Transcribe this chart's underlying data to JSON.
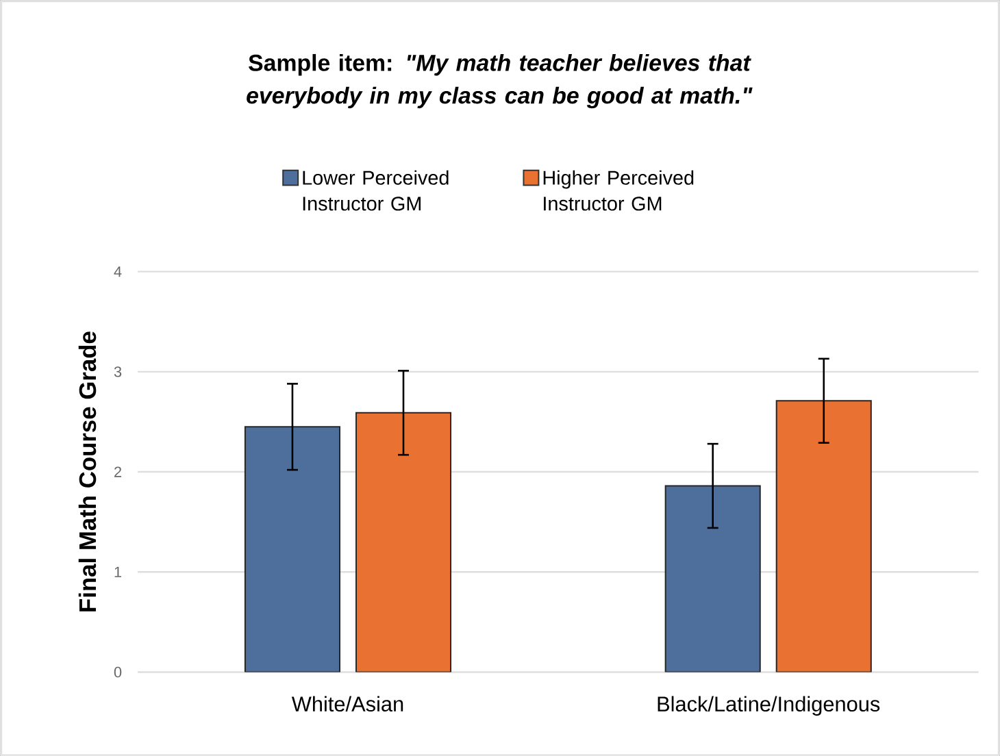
{
  "chart_data": {
    "type": "bar",
    "title": "Sample item: *\"My math teacher believes that everybody in my class can be good at math.\"*",
    "ylabel": "Final Math Course Grade",
    "categories": [
      "White/Asian",
      "Black/Latine/Indigenous"
    ],
    "series": [
      {
        "name": "Lower Perceived Instructor GM",
        "color": "#4e6e9b",
        "values": [
          2.45,
          1.86
        ],
        "errors": [
          0.43,
          0.42
        ]
      },
      {
        "name": "Higher Perceived Instructor GM",
        "color": "#e97132",
        "values": [
          2.59,
          2.71
        ],
        "errors": [
          0.42,
          0.42
        ]
      }
    ],
    "ylim": [
      0,
      4
    ],
    "yticks": [
      0,
      1,
      2,
      3,
      4
    ],
    "grid": "y",
    "legend": "top"
  }
}
